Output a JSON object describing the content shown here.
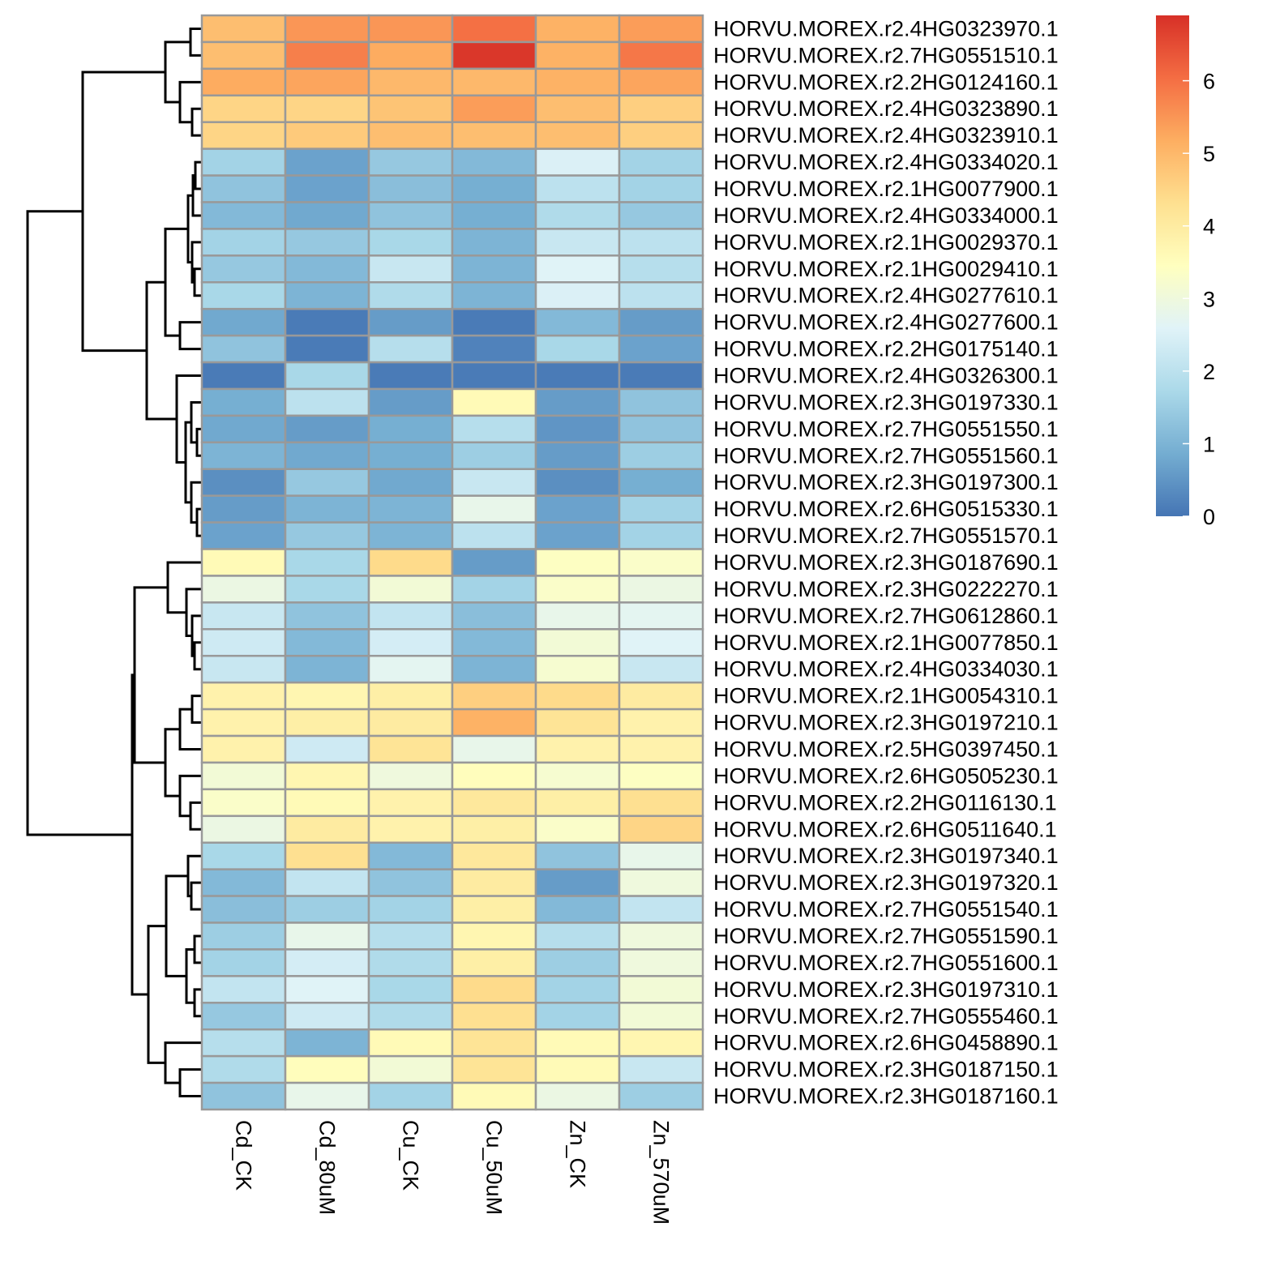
{
  "chart_data": {
    "type": "heatmap",
    "title": "",
    "columns": [
      "Cd_CK",
      "Cd_80uM",
      "Cu_CK",
      "Cu_50uM",
      "Zn_CK",
      "Zn_570uM"
    ],
    "rows": [
      "HORVU.MOREX.r2.4HG0323970.1",
      "HORVU.MOREX.r2.7HG0551510.1",
      "HORVU.MOREX.r2.2HG0124160.1",
      "HORVU.MOREX.r2.4HG0323890.1",
      "HORVU.MOREX.r2.4HG0323910.1",
      "HORVU.MOREX.r2.4HG0334020.1",
      "HORVU.MOREX.r2.1HG0077900.1",
      "HORVU.MOREX.r2.4HG0334000.1",
      "HORVU.MOREX.r2.1HG0029370.1",
      "HORVU.MOREX.r2.1HG0029410.1",
      "HORVU.MOREX.r2.4HG0277610.1",
      "HORVU.MOREX.r2.4HG0277600.1",
      "HORVU.MOREX.r2.2HG0175140.1",
      "HORVU.MOREX.r2.4HG0326300.1",
      "HORVU.MOREX.r2.3HG0197330.1",
      "HORVU.MOREX.r2.7HG0551550.1",
      "HORVU.MOREX.r2.7HG0551560.1",
      "HORVU.MOREX.r2.3HG0197300.1",
      "HORVU.MOREX.r2.6HG0515330.1",
      "HORVU.MOREX.r2.7HG0551570.1",
      "HORVU.MOREX.r2.3HG0187690.1",
      "HORVU.MOREX.r2.3HG0222270.1",
      "HORVU.MOREX.r2.7HG0612860.1",
      "HORVU.MOREX.r2.1HG0077850.1",
      "HORVU.MOREX.r2.4HG0334030.1",
      "HORVU.MOREX.r2.1HG0054310.1",
      "HORVU.MOREX.r2.3HG0197210.1",
      "HORVU.MOREX.r2.5HG0397450.1",
      "HORVU.MOREX.r2.6HG0505230.1",
      "HORVU.MOREX.r2.2HG0116130.1",
      "HORVU.MOREX.r2.6HG0511640.1",
      "HORVU.MOREX.r2.3HG0197340.1",
      "HORVU.MOREX.r2.3HG0197320.1",
      "HORVU.MOREX.r2.7HG0551540.1",
      "HORVU.MOREX.r2.7HG0551590.1",
      "HORVU.MOREX.r2.7HG0551600.1",
      "HORVU.MOREX.r2.3HG0197310.1",
      "HORVU.MOREX.r2.7HG0555460.1",
      "HORVU.MOREX.r2.6HG0458890.1",
      "HORVU.MOREX.r2.3HG0187150.1",
      "HORVU.MOREX.r2.3HG0187160.1"
    ],
    "values": [
      [
        4.9,
        5.5,
        5.5,
        6.0,
        5.1,
        5.4
      ],
      [
        4.9,
        5.8,
        5.2,
        6.8,
        5.1,
        5.9
      ],
      [
        5.2,
        5.3,
        5.0,
        5.0,
        5.1,
        5.3
      ],
      [
        4.5,
        4.5,
        4.8,
        5.4,
        4.9,
        4.6
      ],
      [
        4.5,
        4.7,
        4.9,
        4.9,
        4.9,
        4.6
      ],
      [
        1.6,
        0.7,
        1.4,
        1.1,
        2.5,
        1.6
      ],
      [
        1.3,
        0.7,
        1.2,
        0.9,
        2.0,
        1.6
      ],
      [
        1.1,
        0.8,
        1.3,
        0.9,
        1.8,
        1.4
      ],
      [
        1.6,
        1.4,
        1.7,
        1.0,
        2.2,
        2.0
      ],
      [
        1.4,
        1.1,
        2.2,
        1.0,
        2.6,
        1.9
      ],
      [
        1.7,
        1.0,
        1.8,
        1.0,
        2.5,
        2.0
      ],
      [
        0.8,
        0.1,
        0.6,
        0.1,
        1.1,
        0.6
      ],
      [
        1.3,
        0.1,
        1.9,
        0.2,
        1.7,
        0.7
      ],
      [
        0.1,
        1.7,
        0.1,
        0.1,
        0.1,
        0.1
      ],
      [
        0.9,
        2.0,
        0.6,
        3.6,
        0.6,
        1.3
      ],
      [
        0.8,
        0.6,
        0.9,
        1.9,
        0.5,
        1.3
      ],
      [
        1.0,
        0.8,
        0.9,
        1.5,
        0.6,
        1.5
      ],
      [
        0.4,
        1.4,
        0.8,
        2.2,
        0.4,
        0.9
      ],
      [
        0.6,
        1.0,
        1.0,
        2.8,
        0.7,
        1.6
      ],
      [
        0.7,
        1.4,
        1.0,
        2.0,
        0.7,
        1.6
      ],
      [
        3.6,
        1.7,
        4.4,
        0.6,
        3.4,
        3.3
      ],
      [
        2.9,
        1.7,
        3.1,
        1.6,
        3.3,
        2.9
      ],
      [
        2.2,
        1.3,
        2.1,
        1.2,
        2.8,
        2.7
      ],
      [
        2.3,
        1.1,
        2.4,
        1.1,
        3.1,
        2.6
      ],
      [
        2.2,
        1.0,
        2.7,
        1.0,
        3.2,
        2.2
      ],
      [
        3.8,
        3.7,
        3.9,
        4.6,
        4.4,
        4.0
      ],
      [
        3.8,
        3.9,
        4.0,
        5.1,
        4.2,
        3.8
      ],
      [
        3.8,
        2.3,
        4.2,
        2.8,
        3.8,
        3.8
      ],
      [
        3.1,
        3.7,
        3.0,
        3.5,
        3.2,
        3.4
      ],
      [
        3.3,
        3.6,
        3.8,
        4.1,
        3.9,
        4.3
      ],
      [
        2.9,
        4.0,
        3.8,
        3.9,
        3.3,
        4.5
      ],
      [
        1.7,
        4.3,
        1.1,
        4.1,
        1.3,
        2.8
      ],
      [
        1.1,
        2.1,
        1.3,
        4.0,
        0.6,
        3.0
      ],
      [
        1.2,
        1.5,
        1.6,
        3.9,
        1.1,
        2.1
      ],
      [
        1.5,
        2.8,
        1.9,
        3.7,
        1.9,
        3.0
      ],
      [
        1.6,
        2.4,
        1.8,
        3.9,
        1.5,
        3.0
      ],
      [
        2.1,
        2.6,
        1.7,
        4.4,
        1.6,
        3.1
      ],
      [
        1.4,
        2.3,
        1.8,
        4.3,
        1.6,
        3.1
      ],
      [
        1.9,
        1.0,
        3.6,
        4.2,
        3.6,
        3.7
      ],
      [
        1.8,
        3.5,
        3.1,
        4.2,
        3.6,
        2.2
      ],
      [
        1.3,
        2.8,
        1.6,
        3.6,
        2.9,
        1.5
      ]
    ],
    "colorbar": {
      "min": 0,
      "max": 6.9,
      "ticks": [
        "0",
        "1",
        "2",
        "3",
        "4",
        "5",
        "6"
      ],
      "tick_values": [
        0,
        1,
        2,
        3,
        4,
        5,
        6
      ],
      "colors": [
        "#4575b4",
        "#74add1",
        "#abd9e9",
        "#e0f3f8",
        "#ffffbf",
        "#fee090",
        "#fdae61",
        "#f46d43",
        "#d73027"
      ]
    },
    "row_dendrogram": true,
    "grid_color": "#999999"
  }
}
